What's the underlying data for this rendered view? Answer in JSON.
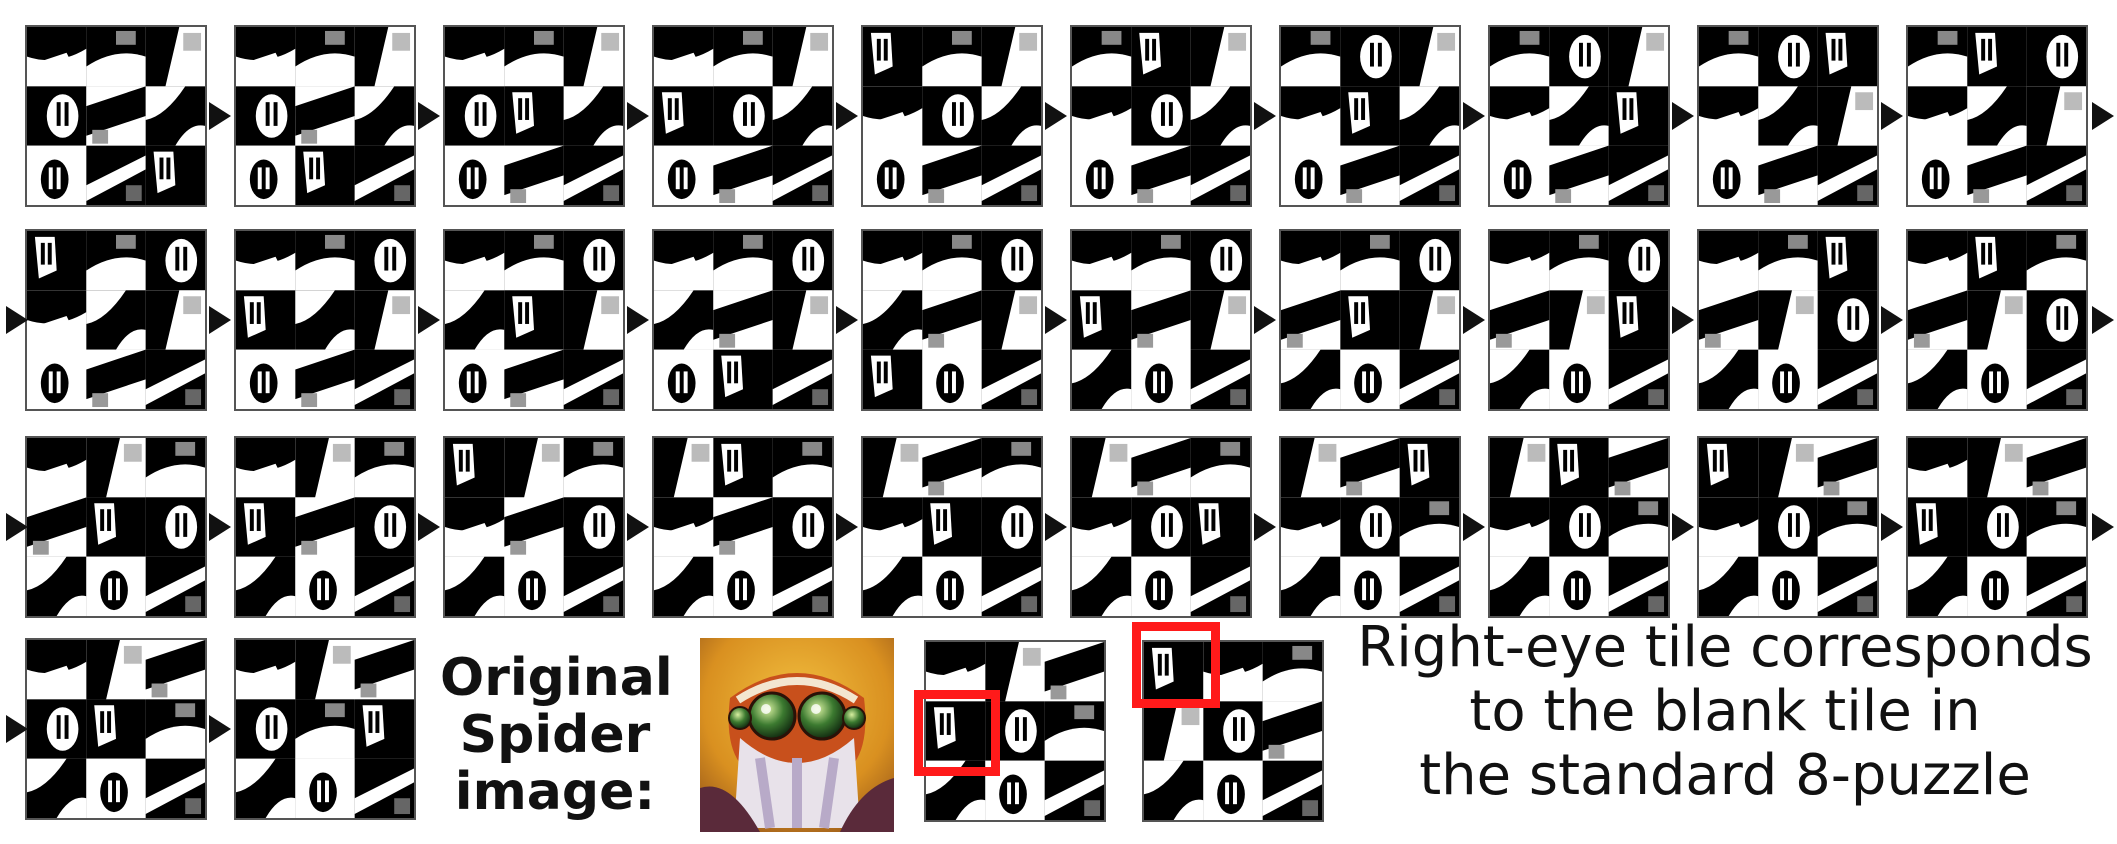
{
  "figure": {
    "original_label": [
      "Original",
      "Spider",
      "image:"
    ],
    "caption_lines": [
      "Right-eye tile corresponds",
      "to the blank tile in",
      "the standard 8-puzzle"
    ],
    "highlight_color": "#ff1a1a",
    "sequence_frame_count": 32,
    "puzzle_size": "3x3",
    "blank_tile_index": 0
  },
  "states": [
    [
      1,
      2,
      3,
      4,
      5,
      6,
      7,
      8,
      0
    ],
    [
      1,
      2,
      3,
      4,
      5,
      6,
      7,
      0,
      8
    ],
    [
      1,
      2,
      3,
      4,
      0,
      6,
      7,
      5,
      8
    ],
    [
      1,
      2,
      3,
      0,
      4,
      6,
      7,
      5,
      8
    ],
    [
      0,
      2,
      3,
      1,
      4,
      6,
      7,
      5,
      8
    ],
    [
      2,
      0,
      3,
      1,
      4,
      6,
      7,
      5,
      8
    ],
    [
      2,
      4,
      3,
      1,
      0,
      6,
      7,
      5,
      8
    ],
    [
      2,
      4,
      3,
      1,
      6,
      0,
      7,
      5,
      8
    ],
    [
      2,
      4,
      0,
      1,
      6,
      3,
      7,
      5,
      8
    ],
    [
      2,
      0,
      4,
      1,
      6,
      3,
      7,
      5,
      8
    ],
    [
      0,
      2,
      4,
      1,
      6,
      3,
      7,
      5,
      8
    ],
    [
      1,
      2,
      4,
      0,
      6,
      3,
      7,
      5,
      8
    ],
    [
      1,
      2,
      4,
      6,
      0,
      3,
      7,
      5,
      8
    ],
    [
      1,
      2,
      4,
      6,
      5,
      3,
      7,
      0,
      8
    ],
    [
      1,
      2,
      4,
      6,
      5,
      3,
      0,
      7,
      8
    ],
    [
      1,
      2,
      4,
      0,
      5,
      3,
      6,
      7,
      8
    ],
    [
      1,
      2,
      4,
      5,
      0,
      3,
      6,
      7,
      8
    ],
    [
      1,
      2,
      4,
      5,
      3,
      0,
      6,
      7,
      8
    ],
    [
      1,
      2,
      0,
      5,
      3,
      4,
      6,
      7,
      8
    ],
    [
      1,
      0,
      2,
      5,
      3,
      4,
      6,
      7,
      8
    ],
    [
      1,
      3,
      2,
      5,
      0,
      4,
      6,
      7,
      8
    ],
    [
      1,
      3,
      2,
      0,
      5,
      4,
      6,
      7,
      8
    ],
    [
      0,
      3,
      2,
      1,
      5,
      4,
      6,
      7,
      8
    ],
    [
      3,
      0,
      2,
      1,
      5,
      4,
      6,
      7,
      8
    ],
    [
      3,
      5,
      2,
      1,
      0,
      4,
      6,
      7,
      8
    ],
    [
      3,
      5,
      2,
      1,
      4,
      0,
      6,
      7,
      8
    ],
    [
      3,
      5,
      0,
      1,
      4,
      2,
      6,
      7,
      8
    ],
    [
      3,
      0,
      5,
      1,
      4,
      2,
      6,
      7,
      8
    ],
    [
      0,
      3,
      5,
      1,
      4,
      2,
      6,
      7,
      8
    ],
    [
      1,
      3,
      5,
      0,
      4,
      2,
      6,
      7,
      8
    ],
    [
      1,
      3,
      5,
      4,
      0,
      2,
      6,
      7,
      8
    ],
    [
      1,
      3,
      5,
      4,
      2,
      0,
      6,
      7,
      8
    ]
  ],
  "scrambled_example": [
    1,
    3,
    5,
    0,
    4,
    2,
    6,
    7,
    8
  ],
  "solved_example": [
    0,
    1,
    2,
    3,
    4,
    5,
    6,
    7,
    8
  ]
}
